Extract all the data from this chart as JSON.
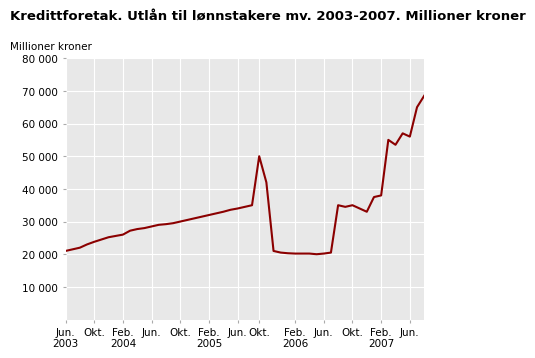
{
  "title": "Kredittforetak. Utlån til lønnstakere mv. 2003-2007. Millioner kroner",
  "ylabel": "Millioner kroner",
  "line_color": "#8B0000",
  "background_color": "#ffffff",
  "plot_bg_color": "#e8e8e8",
  "ylim": [
    0,
    80000
  ],
  "yticks": [
    10000,
    20000,
    30000,
    40000,
    50000,
    60000,
    70000,
    80000
  ],
  "ytick_labels": [
    "10 000",
    "20 000",
    "30 000",
    "40 000",
    "50 000",
    "60 000",
    "70 000",
    "80 000"
  ],
  "x_values": [
    0,
    1,
    2,
    3,
    4,
    5,
    6,
    7,
    8,
    9,
    10,
    11,
    12,
    13,
    14,
    15,
    16,
    17,
    18,
    19,
    20,
    21,
    22,
    23,
    24,
    25,
    26,
    27,
    28,
    29,
    30,
    31,
    32,
    33,
    34,
    35,
    36,
    37,
    38,
    39,
    40,
    41,
    42,
    43,
    44,
    45,
    46,
    47,
    48,
    49,
    50
  ],
  "y_values": [
    21000,
    21500,
    22000,
    23000,
    23800,
    24500,
    25200,
    25600,
    26000,
    27200,
    27700,
    28000,
    28500,
    29000,
    29200,
    29500,
    30000,
    30500,
    31000,
    31500,
    32000,
    32500,
    33000,
    33600,
    34000,
    34500,
    35000,
    50000,
    42000,
    21000,
    20500,
    20300,
    20200,
    20200,
    20200,
    20000,
    20200,
    20500,
    35000,
    34500,
    35000,
    34000,
    33000,
    37500,
    38000,
    55000,
    53500,
    57000,
    56000,
    65000,
    68500
  ],
  "xtick_positions": [
    0,
    4,
    8,
    12,
    16,
    20,
    24,
    27,
    32,
    36,
    40,
    44,
    48
  ],
  "xtick_labels": [
    "Jun.\n2003",
    "Okt.",
    "Feb.\n2004",
    "Jun.",
    "Okt.",
    "Feb.\n2005",
    "Jun.",
    "Okt.",
    "Feb.\n2006",
    "Jun.",
    "Okt.",
    "Feb.\n2007",
    "Jun."
  ],
  "title_fontsize": 9.5,
  "axis_label_fontsize": 7.5,
  "tick_fontsize": 7.5,
  "grid_color": "#ffffff",
  "line_width": 1.5
}
